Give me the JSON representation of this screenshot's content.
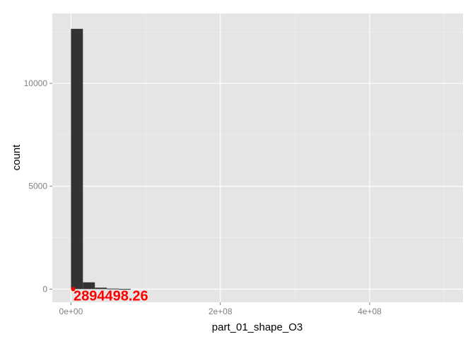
{
  "chart_data": {
    "type": "bar",
    "subtype": "histogram",
    "title": "",
    "xlabel": "part_01_shape_O3",
    "ylabel": "count",
    "xlim": [
      -25000000,
      525000000
    ],
    "ylim": [
      -640,
      13400
    ],
    "x_ticks": [
      {
        "value": 0,
        "label": "0e+00"
      },
      {
        "value": 200000000,
        "label": "2e+08"
      },
      {
        "value": 400000000,
        "label": "4e+08"
      }
    ],
    "y_ticks": [
      {
        "value": 0,
        "label": "0"
      },
      {
        "value": 5000,
        "label": "5000"
      },
      {
        "value": 10000,
        "label": "10000"
      }
    ],
    "bins": [
      {
        "x0": 0,
        "x1": 16000000,
        "count": 12650
      },
      {
        "x0": 16000000,
        "x1": 32000000,
        "count": 330
      },
      {
        "x0": 32000000,
        "x1": 48000000,
        "count": 70
      },
      {
        "x0": 48000000,
        "x1": 64000000,
        "count": 25
      },
      {
        "x0": 64000000,
        "x1": 80000000,
        "count": 10
      }
    ],
    "annotation": {
      "label": "2894498.26",
      "x": 2894498.26,
      "y": 0,
      "color": "#ff0000"
    },
    "grid": true,
    "colors": {
      "panel": "#e5e5e5",
      "grid_major": "#ffffff",
      "grid_minor": "#f2f2f2",
      "bar": "#333333",
      "annotation": "#ff0000"
    }
  }
}
